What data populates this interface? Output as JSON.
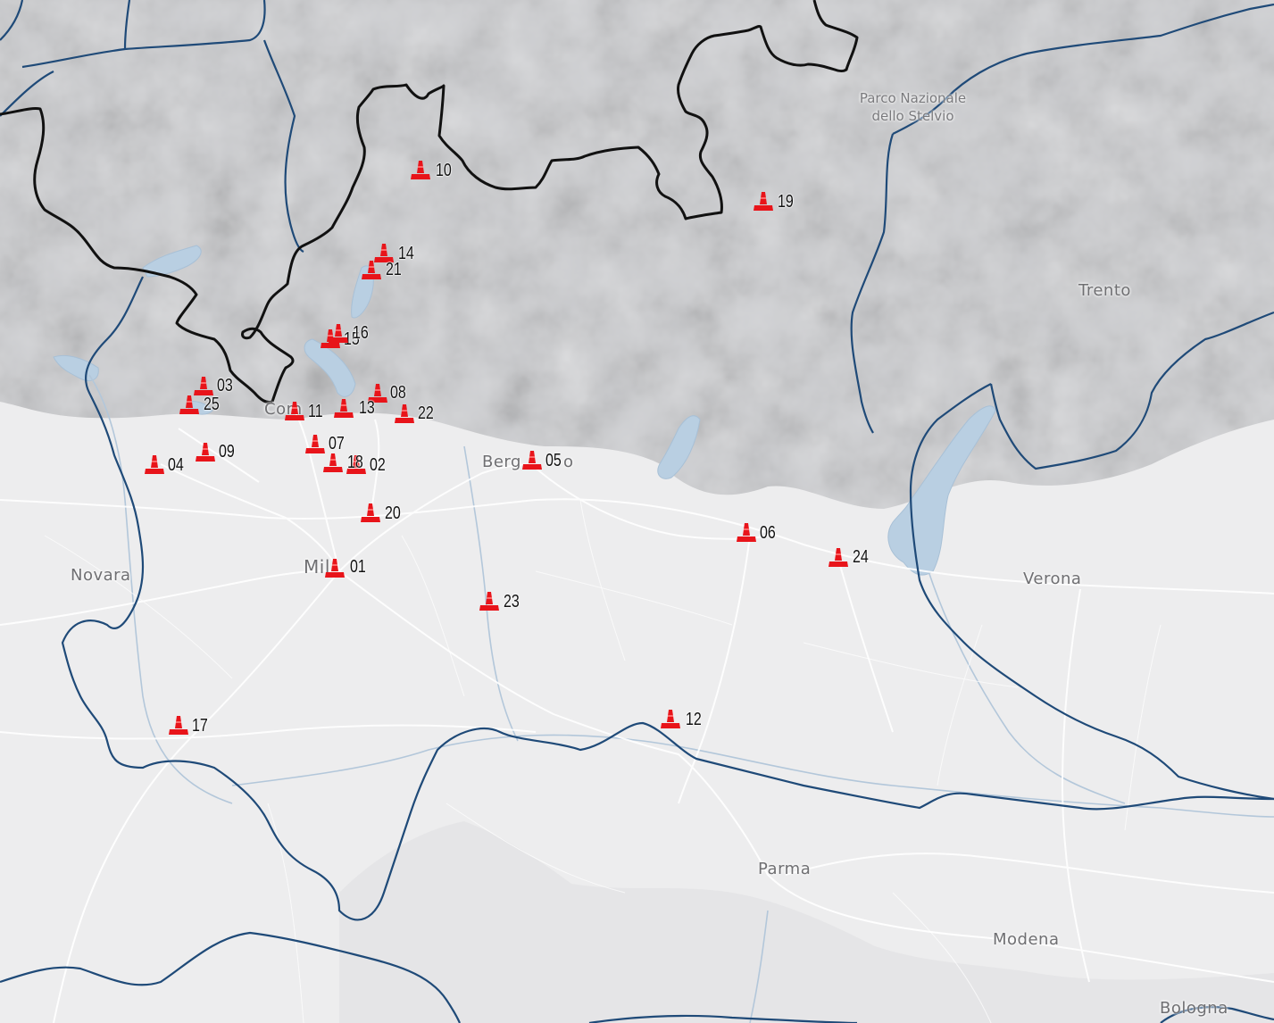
{
  "map": {
    "colors": {
      "background": "#ededee",
      "mountain": "#c9cacd",
      "mountain_dark": "#b5b7bb",
      "water": "#b9cfe2",
      "country_border": "#111111",
      "region_border": "#1f4a78",
      "roads": "#ffffff",
      "marker": "#e8141a"
    },
    "places": [
      {
        "id": "novara",
        "label": "Novara"
      },
      {
        "id": "como",
        "label": "Com"
      },
      {
        "id": "milano",
        "label": "Mil"
      },
      {
        "id": "bergamo",
        "label": "Berg"
      },
      {
        "id": "bergamo_tail",
        "label": "o"
      },
      {
        "id": "trento",
        "label": "Trento"
      },
      {
        "id": "verona",
        "label": "Verona"
      },
      {
        "id": "parma",
        "label": "Parma"
      },
      {
        "id": "modena",
        "label": "Modena"
      },
      {
        "id": "bologna",
        "label": "Bologna"
      }
    ],
    "park": {
      "line1": "Parco Nazionale",
      "line2": "dello Stelvio"
    },
    "marker_icon": "traffic-cone-icon",
    "markers": [
      {
        "id": "m01",
        "label": "01"
      },
      {
        "id": "m02",
        "label": "02"
      },
      {
        "id": "m03",
        "label": "03"
      },
      {
        "id": "m04",
        "label": "04"
      },
      {
        "id": "m05",
        "label": "05"
      },
      {
        "id": "m06",
        "label": "06"
      },
      {
        "id": "m07",
        "label": "07"
      },
      {
        "id": "m08",
        "label": "08"
      },
      {
        "id": "m09",
        "label": "09"
      },
      {
        "id": "m10",
        "label": "10"
      },
      {
        "id": "m11",
        "label": "11"
      },
      {
        "id": "m12",
        "label": "12"
      },
      {
        "id": "m13",
        "label": "13"
      },
      {
        "id": "m14",
        "label": "14"
      },
      {
        "id": "m15",
        "label": "15"
      },
      {
        "id": "m16",
        "label": "16"
      },
      {
        "id": "m17",
        "label": "17"
      },
      {
        "id": "m18",
        "label": "18"
      },
      {
        "id": "m19",
        "label": "19"
      },
      {
        "id": "m20",
        "label": "20"
      },
      {
        "id": "m21",
        "label": "21"
      },
      {
        "id": "m22",
        "label": "22"
      },
      {
        "id": "m23",
        "label": "23"
      },
      {
        "id": "m24",
        "label": "24"
      },
      {
        "id": "m25",
        "label": "25"
      }
    ]
  }
}
